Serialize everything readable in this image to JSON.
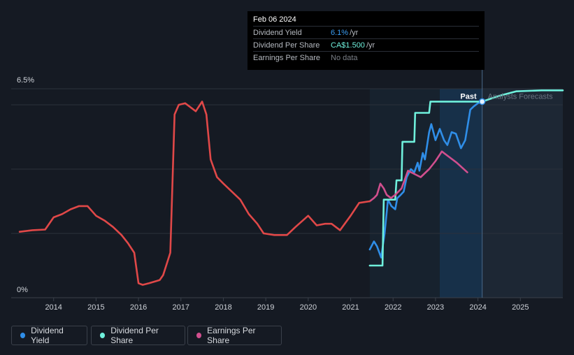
{
  "tooltip": {
    "date": "Feb 06 2024",
    "rows": [
      {
        "label": "Dividend Yield",
        "value": "6.1%",
        "unit": "/yr",
        "color": "#3a9cf2"
      },
      {
        "label": "Dividend Per Share",
        "value": "CA$1.500",
        "unit": "/yr",
        "color": "#6ff0dc"
      },
      {
        "label": "Earnings Per Share",
        "value": "No data",
        "unit": "",
        "color": "#7a7f87"
      }
    ]
  },
  "annotations": {
    "past": "Past",
    "forecast": "Analysts Forecasts"
  },
  "legend": [
    {
      "label": "Dividend Yield",
      "color": "#2f8ee8"
    },
    {
      "label": "Dividend Per Share",
      "color": "#6ff0dc"
    },
    {
      "label": "Earnings Per Share",
      "color": "#d14f8e"
    }
  ],
  "chart_data": {
    "type": "line",
    "y_tick_labels": [
      "6.5%",
      "0%"
    ],
    "ylim": [
      0,
      6.5
    ],
    "xlim": [
      2013.0,
      2026.0
    ],
    "x_ticks": [
      2014,
      2015,
      2016,
      2017,
      2018,
      2019,
      2020,
      2021,
      2022,
      2023,
      2024,
      2025
    ],
    "grid": true,
    "past_marker": 2024.1,
    "highlight_start": 2021.45,
    "highlight_mid": 2023.1,
    "series": [
      {
        "name": "Dividend Yield",
        "color": "#2f8ee8",
        "points": [
          [
            2021.45,
            1.5
          ],
          [
            2021.55,
            1.75
          ],
          [
            2021.62,
            1.6
          ],
          [
            2021.72,
            1.25
          ],
          [
            2021.8,
            2.0
          ],
          [
            2021.88,
            3.05
          ],
          [
            2021.96,
            2.85
          ],
          [
            2022.05,
            2.75
          ],
          [
            2022.1,
            3.1
          ],
          [
            2022.18,
            3.2
          ],
          [
            2022.25,
            3.3
          ],
          [
            2022.32,
            3.75
          ],
          [
            2022.42,
            4.0
          ],
          [
            2022.5,
            3.9
          ],
          [
            2022.58,
            4.2
          ],
          [
            2022.62,
            3.95
          ],
          [
            2022.7,
            4.5
          ],
          [
            2022.75,
            4.3
          ],
          [
            2022.85,
            5.15
          ],
          [
            2022.9,
            5.4
          ],
          [
            2023.0,
            4.9
          ],
          [
            2023.1,
            5.25
          ],
          [
            2023.2,
            4.9
          ],
          [
            2023.28,
            4.75
          ],
          [
            2023.38,
            5.15
          ],
          [
            2023.48,
            5.1
          ],
          [
            2023.6,
            4.65
          ],
          [
            2023.7,
            4.9
          ],
          [
            2023.82,
            5.85
          ],
          [
            2023.9,
            5.95
          ],
          [
            2024.0,
            6.05
          ],
          [
            2024.1,
            6.1
          ]
        ]
      },
      {
        "name": "Dividend Per Share",
        "color": "#6ff0dc",
        "points": [
          [
            2021.45,
            1.0
          ],
          [
            2021.75,
            1.0
          ],
          [
            2021.78,
            3.05
          ],
          [
            2022.05,
            3.05
          ],
          [
            2022.08,
            3.65
          ],
          [
            2022.2,
            3.65
          ],
          [
            2022.22,
            4.85
          ],
          [
            2022.5,
            4.85
          ],
          [
            2022.52,
            5.75
          ],
          [
            2022.85,
            5.75
          ],
          [
            2022.88,
            6.1
          ],
          [
            2024.1,
            6.1
          ],
          [
            2024.5,
            6.28
          ],
          [
            2024.9,
            6.42
          ],
          [
            2025.5,
            6.45
          ],
          [
            2026.0,
            6.45
          ]
        ]
      },
      {
        "name": "Earnings Per Share",
        "color": "#d14f8e",
        "points": [
          [
            2021.45,
            3.0
          ],
          [
            2021.55,
            3.1
          ],
          [
            2021.62,
            3.2
          ],
          [
            2021.7,
            3.55
          ],
          [
            2021.78,
            3.4
          ],
          [
            2021.85,
            3.2
          ],
          [
            2021.95,
            3.1
          ],
          [
            2022.05,
            3.2
          ],
          [
            2022.2,
            3.4
          ],
          [
            2022.35,
            3.95
          ],
          [
            2022.5,
            3.85
          ],
          [
            2022.65,
            3.75
          ],
          [
            2022.85,
            4.0
          ],
          [
            2023.0,
            4.25
          ],
          [
            2023.15,
            4.55
          ],
          [
            2023.3,
            4.4
          ],
          [
            2023.5,
            4.2
          ],
          [
            2023.75,
            3.9
          ]
        ]
      },
      {
        "name": "Earnings Per Share (history)",
        "color": "#e04848",
        "points": [
          [
            2013.2,
            2.05
          ],
          [
            2013.5,
            2.1
          ],
          [
            2013.8,
            2.12
          ],
          [
            2014.0,
            2.5
          ],
          [
            2014.2,
            2.6
          ],
          [
            2014.4,
            2.75
          ],
          [
            2014.6,
            2.85
          ],
          [
            2014.8,
            2.85
          ],
          [
            2015.0,
            2.55
          ],
          [
            2015.2,
            2.4
          ],
          [
            2015.4,
            2.2
          ],
          [
            2015.6,
            1.95
          ],
          [
            2015.75,
            1.7
          ],
          [
            2015.9,
            1.4
          ],
          [
            2016.0,
            0.45
          ],
          [
            2016.1,
            0.4
          ],
          [
            2016.25,
            0.45
          ],
          [
            2016.5,
            0.55
          ],
          [
            2016.58,
            0.7
          ],
          [
            2016.75,
            1.4
          ],
          [
            2016.85,
            5.7
          ],
          [
            2016.95,
            6.0
          ],
          [
            2017.1,
            6.05
          ],
          [
            2017.35,
            5.8
          ],
          [
            2017.5,
            6.1
          ],
          [
            2017.6,
            5.7
          ],
          [
            2017.7,
            4.3
          ],
          [
            2017.85,
            3.75
          ],
          [
            2018.0,
            3.55
          ],
          [
            2018.2,
            3.3
          ],
          [
            2018.4,
            3.05
          ],
          [
            2018.6,
            2.6
          ],
          [
            2018.8,
            2.3
          ],
          [
            2018.95,
            2.0
          ],
          [
            2019.2,
            1.95
          ],
          [
            2019.5,
            1.95
          ],
          [
            2019.7,
            2.2
          ],
          [
            2020.0,
            2.55
          ],
          [
            2020.2,
            2.25
          ],
          [
            2020.4,
            2.3
          ],
          [
            2020.55,
            2.3
          ],
          [
            2020.75,
            2.1
          ],
          [
            2021.0,
            2.55
          ],
          [
            2021.2,
            2.95
          ],
          [
            2021.45,
            3.0
          ]
        ]
      }
    ]
  }
}
